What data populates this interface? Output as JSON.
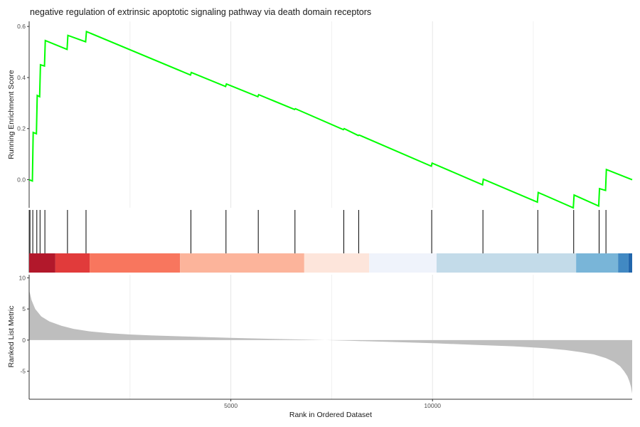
{
  "chart_data": {
    "type": "line",
    "title": "negative regulation of extrinsic apoptotic signaling pathway via death domain receptors",
    "xlabel": "Rank in Ordered Dataset",
    "xlim": [
      0,
      14950
    ],
    "x_ticks": [
      5000,
      10000
    ],
    "x_tick_labels": [
      "5000",
      "10000"
    ],
    "grid": true,
    "line_color": "#00ff00",
    "running_score": {
      "ylabel": "Running Enrichment Score",
      "ylim": [
        -0.11,
        0.62
      ],
      "y_ticks": [
        0.0,
        0.2,
        0.4,
        0.6
      ],
      "y_tick_labels": [
        "0.0",
        "0.2",
        "0.4",
        "0.6"
      ],
      "x": [
        0,
        80,
        100,
        180,
        200,
        260,
        280,
        380,
        400,
        940,
        960,
        1400,
        1420,
        4000,
        4020,
        4870,
        4890,
        5670,
        5690,
        6580,
        6600,
        7790,
        7810,
        8160,
        8180,
        9970,
        9990,
        11240,
        11260,
        12600,
        12620,
        13490,
        13510,
        14120,
        14140,
        14290,
        14310,
        14950
      ],
      "values": [
        0.0,
        -0.005,
        0.185,
        0.18,
        0.33,
        0.325,
        0.45,
        0.445,
        0.545,
        0.51,
        0.565,
        0.54,
        0.58,
        0.41,
        0.42,
        0.365,
        0.375,
        0.325,
        0.333,
        0.275,
        0.278,
        0.196,
        0.2,
        0.173,
        0.175,
        0.053,
        0.065,
        -0.02,
        0.002,
        -0.088,
        -0.05,
        -0.11,
        -0.06,
        -0.103,
        -0.035,
        -0.042,
        0.04,
        0.0
      ]
    },
    "hits": [
      20,
      90,
      190,
      270,
      390,
      950,
      1410,
      4010,
      4880,
      5680,
      6590,
      7800,
      8170,
      9980,
      11250,
      12610,
      13500,
      14130,
      14300
    ],
    "color_bar": {
      "segments": [
        {
          "from": 0,
          "to": 650,
          "color": "#b2182b"
        },
        {
          "from": 650,
          "to": 1500,
          "color": "#e13b3b"
        },
        {
          "from": 1500,
          "to": 3740,
          "color": "#f8765e"
        },
        {
          "from": 3740,
          "to": 6820,
          "color": "#fcb49b"
        },
        {
          "from": 6820,
          "to": 8430,
          "color": "#fde5db"
        },
        {
          "from": 8430,
          "to": 10100,
          "color": "#eff3fb"
        },
        {
          "from": 10100,
          "to": 13560,
          "color": "#c3dbe9"
        },
        {
          "from": 13560,
          "to": 14600,
          "color": "#79b5d8"
        },
        {
          "from": 14600,
          "to": 14860,
          "color": "#4189c3"
        },
        {
          "from": 14860,
          "to": 14950,
          "color": "#2166ac"
        }
      ]
    },
    "ranked_metric": {
      "ylabel": "Ranked List Metric",
      "ylim": [
        -9.5,
        10.5
      ],
      "y_ticks": [
        -5,
        0,
        5,
        10
      ],
      "y_tick_labels": [
        "-5",
        "0",
        "5",
        "10"
      ],
      "fill_color": "#bebebe",
      "x": [
        0,
        1,
        60,
        150,
        300,
        500,
        800,
        1100,
        1500,
        2000,
        2500,
        3000,
        4000,
        5000,
        6000,
        7000,
        7350,
        7500,
        8000,
        9000,
        10000,
        11000,
        12000,
        12800,
        13300,
        13700,
        14000,
        14300,
        14500,
        14650,
        14750,
        14830,
        14880,
        14920,
        14950
      ],
      "values": [
        0,
        8.0,
        6.4,
        5.0,
        3.8,
        3.0,
        2.3,
        1.8,
        1.4,
        1.1,
        0.9,
        0.75,
        0.55,
        0.35,
        0.2,
        0.06,
        0.0,
        -0.03,
        -0.12,
        -0.3,
        -0.5,
        -0.75,
        -1.0,
        -1.3,
        -1.6,
        -1.95,
        -2.3,
        -2.9,
        -3.5,
        -4.2,
        -5.0,
        -5.8,
        -6.6,
        -7.5,
        -8.6
      ]
    }
  }
}
